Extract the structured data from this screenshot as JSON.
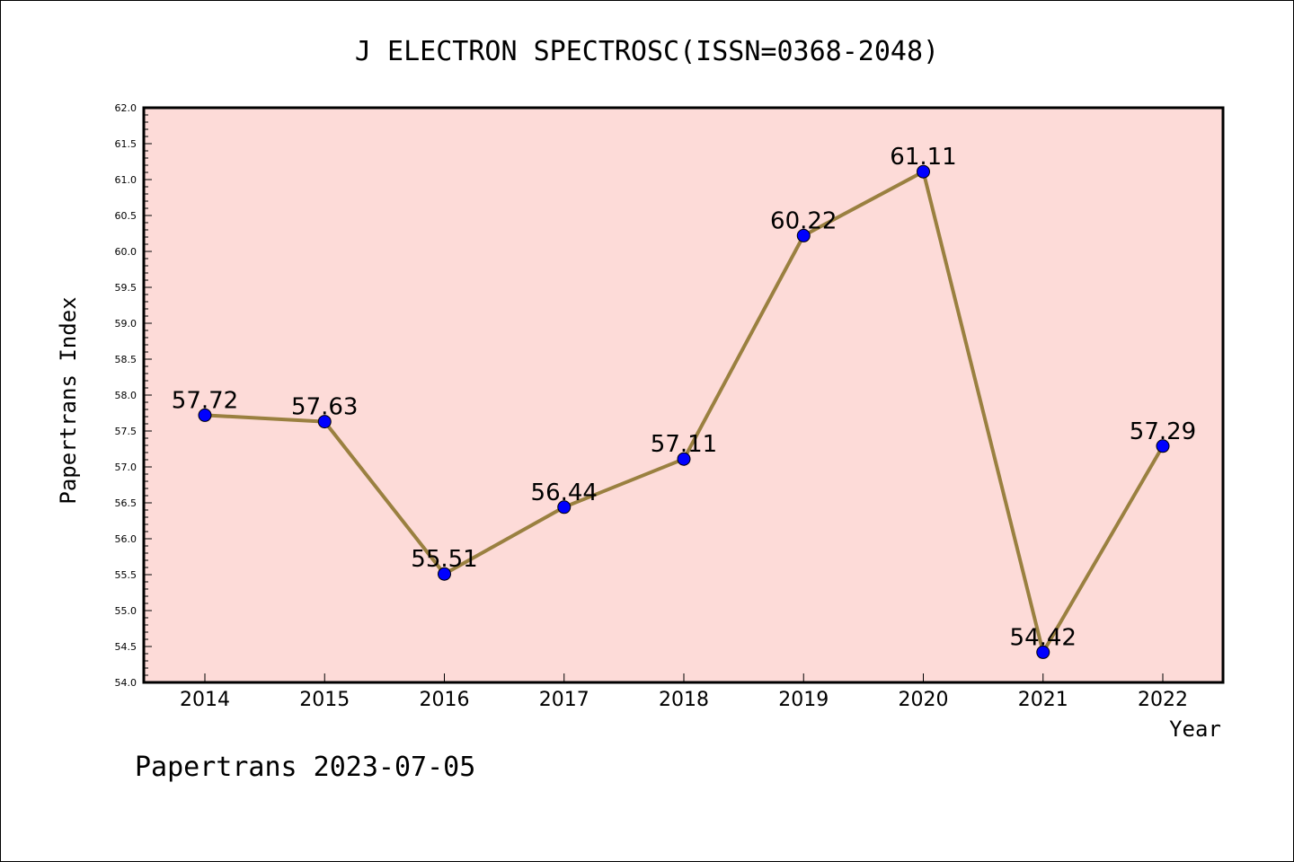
{
  "chart_data": {
    "type": "line",
    "title": "J ELECTRON SPECTROSC(ISSN=0368-2048)",
    "xlabel": "Year",
    "ylabel": "Papertrans Index",
    "categories": [
      "2014",
      "2015",
      "2016",
      "2017",
      "2018",
      "2019",
      "2020",
      "2021",
      "2022"
    ],
    "series": [
      {
        "values": [
          57.72,
          57.63,
          55.51,
          56.44,
          57.11,
          60.22,
          61.11,
          54.42,
          57.29
        ],
        "labels": [
          "57.72",
          "57.63",
          "55.51",
          "56.44",
          "57.11",
          "60.22",
          "61.11",
          "54.42",
          "57.29"
        ]
      }
    ],
    "ylim": [
      54.0,
      62.0
    ],
    "yticks": [
      "54.0",
      "54.5",
      "55.0",
      "55.5",
      "56.0",
      "56.5",
      "57.0",
      "57.5",
      "58.0",
      "58.5",
      "59.0",
      "59.5",
      "60.0",
      "60.5",
      "61.0",
      "61.5",
      "62.0"
    ],
    "grid": false,
    "legend": "none",
    "colors": {
      "plot_background": "#fddbd8",
      "line": "#9a8040",
      "marker": "#0000ff"
    }
  },
  "footer": "Papertrans 2023-07-05"
}
